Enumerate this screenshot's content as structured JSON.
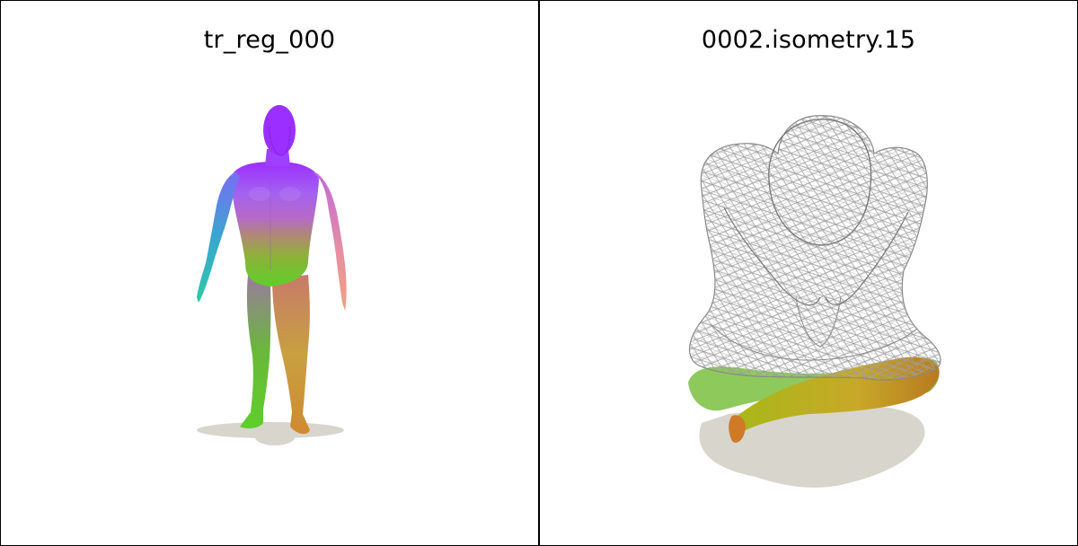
{
  "panels": [
    {
      "title": "tr_reg_000",
      "render": "colored-human-body-standing",
      "colors": {
        "head": "#9b2fff",
        "torso": "#a05cf0",
        "left_arm": "#2fc7b5",
        "right_arm": "#f08a8a",
        "legs": "#5fcf2a",
        "shadow": "#d8d5cd"
      }
    },
    {
      "title": "0002.isometry.15",
      "render": "wireframe-human-body-crouching",
      "colors": {
        "wire": "#9a9a9a",
        "limb": "#c9a21a",
        "leaf": "#6fbf3a",
        "shadow": "#d8d5cd"
      }
    }
  ]
}
